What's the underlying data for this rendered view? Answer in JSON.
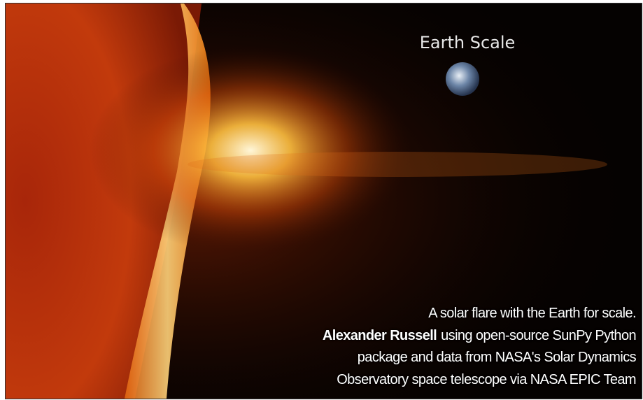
{
  "image": {
    "label": "Earth Scale"
  },
  "caption": {
    "lines": [
      {
        "text": "A solar flare with the Earth for scale."
      },
      {
        "bold": "Alexander Russell",
        "text": "using open-source SunPy Python"
      },
      {
        "text": "package and data from NASA's Solar Dynamics"
      },
      {
        "text": "Observatory space telescope via NASA EPIC Team"
      }
    ]
  }
}
